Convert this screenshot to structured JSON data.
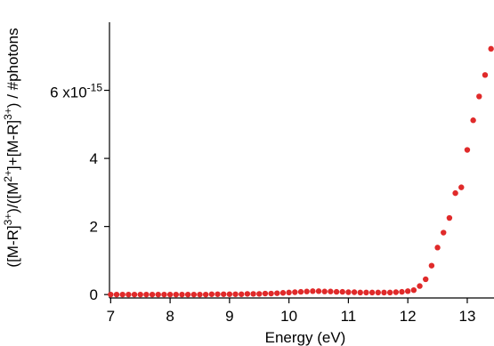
{
  "chart_data": {
    "type": "scatter",
    "title": "",
    "xlabel": "Energy (eV)",
    "ylabel": "([M-R]3+)/([M2+]+[M-R]3+) / #photons",
    "ylabel_parts": {
      "t1": "([M-R]",
      "s1": "3+",
      "t2": ")/([M",
      "s2": "2+",
      "t3": "]+[M-R]",
      "s3": "3+",
      "t4": ") / #photons"
    },
    "y_multiplier": {
      "mantissa": "6 x10",
      "exponent": "-15"
    },
    "xlim": [
      6.98,
      13.45
    ],
    "ylim": [
      -0.1,
      8.0
    ],
    "y_unit_scale": "1e-15",
    "x_ticks": [
      7,
      8,
      9,
      10,
      11,
      12,
      13
    ],
    "x_tick_labels": [
      "7",
      "8",
      "9",
      "10",
      "11",
      "12",
      "13"
    ],
    "y_ticks": [
      0,
      2,
      4,
      6
    ],
    "y_tick_labels": [
      "0",
      "2",
      "4",
      ""
    ],
    "grid": false,
    "marker_color": "#e02a2a",
    "series": [
      {
        "x": [
          7.0,
          7.1,
          7.2,
          7.3,
          7.4,
          7.5,
          7.6,
          7.7,
          7.8,
          7.9,
          8.0,
          8.1,
          8.2,
          8.3,
          8.4,
          8.5,
          8.6,
          8.7,
          8.8,
          8.9,
          9.0,
          9.1,
          9.2,
          9.3,
          9.4,
          9.5,
          9.6,
          9.7,
          9.8,
          9.9,
          10.0,
          10.1,
          10.2,
          10.3,
          10.4,
          10.5,
          10.6,
          10.7,
          10.8,
          10.9,
          11.0,
          11.1,
          11.2,
          11.3,
          11.4,
          11.5,
          11.6,
          11.7,
          11.8,
          11.9,
          12.0,
          12.1,
          12.2,
          12.3,
          12.4,
          12.5,
          12.6,
          12.7,
          12.8,
          12.9,
          13.0,
          13.1,
          13.2,
          13.3,
          13.4
        ],
        "y": [
          0.0,
          0.0,
          0.0,
          0.0,
          0.0,
          0.0,
          0.0,
          0.0,
          0.0,
          0.0,
          0.0,
          0.0,
          0.0,
          0.0,
          0.0,
          0.0,
          0.0,
          0.01,
          0.01,
          0.01,
          0.01,
          0.01,
          0.01,
          0.02,
          0.02,
          0.02,
          0.03,
          0.03,
          0.04,
          0.05,
          0.06,
          0.07,
          0.08,
          0.09,
          0.1,
          0.1,
          0.09,
          0.09,
          0.08,
          0.08,
          0.07,
          0.07,
          0.06,
          0.06,
          0.06,
          0.06,
          0.06,
          0.06,
          0.07,
          0.08,
          0.1,
          0.13,
          0.25,
          0.45,
          0.85,
          1.38,
          1.82,
          2.25,
          2.98,
          3.15,
          4.25,
          5.12,
          5.82,
          6.45,
          7.22
        ]
      }
    ]
  }
}
